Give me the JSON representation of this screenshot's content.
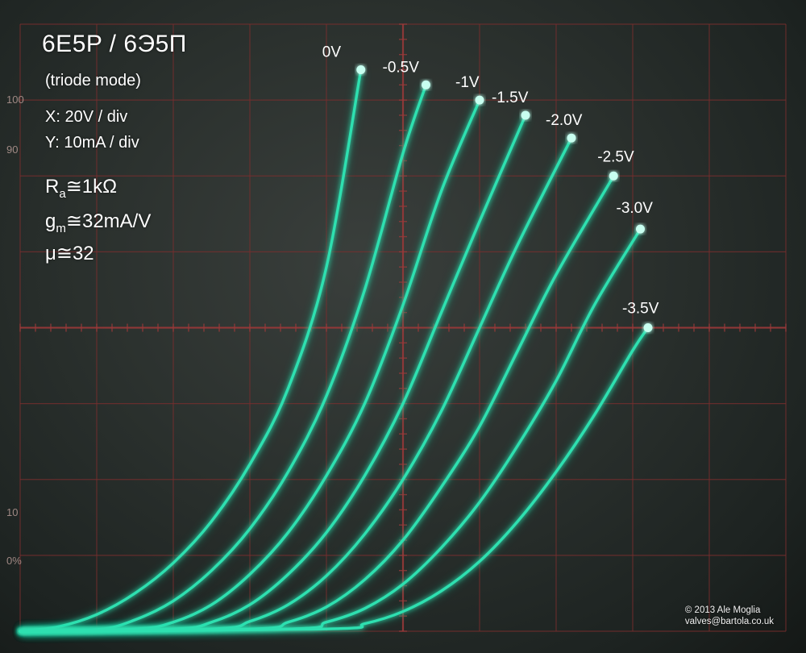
{
  "header": {
    "title": "6E5P / 6Э5П",
    "subtitle": "(triode mode)",
    "x_scale": "X: 20V / div",
    "y_scale": "Y: 10mA / div"
  },
  "params": {
    "ra_symbol": "R",
    "ra_sub": "a",
    "ra_value": "≅1kΩ",
    "gm_symbol": "g",
    "gm_sub": "m",
    "gm_value": "≅32mA/V",
    "mu": "μ≅32"
  },
  "graticule_marks": {
    "left_100": "100",
    "left_90": "90",
    "left_10": "10",
    "left_0pct": "0%"
  },
  "copyright": {
    "line1": "© 2013 Ale Moglia",
    "line2": "valves@bartola.co.uk"
  },
  "colors": {
    "trace": "#2fe0b0",
    "trace_glow": "#18a07e",
    "grid": "#7a2e2e"
  },
  "chart_data": {
    "type": "line",
    "title": "6E5P / 6Э5П",
    "subtitle": "(triode mode)",
    "xlabel": "",
    "ylabel": "",
    "x_units_per_div": "20V",
    "y_units_per_div": "10mA",
    "grid": true,
    "xlim": [
      0,
      200
    ],
    "ylim": [
      0,
      80
    ],
    "series": [
      {
        "name": "0V",
        "x": [
          0,
          10,
          20,
          30,
          40,
          50,
          60,
          70,
          80,
          89
        ],
        "y": [
          0,
          0.6,
          2.2,
          5.0,
          9.0,
          14.5,
          22.0,
          32.0,
          48.0,
          74.0
        ]
      },
      {
        "name": "-0.5V",
        "x": [
          0,
          20,
          30,
          40,
          50,
          60,
          70,
          80,
          90,
          100,
          106
        ],
        "y": [
          0,
          0.2,
          1.5,
          4.0,
          8.0,
          13.5,
          21.0,
          31.0,
          45.0,
          63.0,
          72.0
        ]
      },
      {
        "name": "-1V",
        "x": [
          0,
          30,
          40,
          50,
          60,
          70,
          80,
          90,
          100,
          110,
          120
        ],
        "y": [
          0,
          0.3,
          1.2,
          3.5,
          7.5,
          13.0,
          20.5,
          30.0,
          43.0,
          58.0,
          70.0
        ]
      },
      {
        "name": "-1.5V",
        "x": [
          0,
          40,
          50,
          60,
          70,
          80,
          90,
          100,
          110,
          120,
          132
        ],
        "y": [
          0,
          0.3,
          1.2,
          3.5,
          7.5,
          13.0,
          20.5,
          30.0,
          42.0,
          54.0,
          68.0
        ]
      },
      {
        "name": "-2.0V",
        "x": [
          0,
          50,
          60,
          70,
          80,
          90,
          100,
          110,
          120,
          130,
          144
        ],
        "y": [
          0,
          0.3,
          1.3,
          3.5,
          7.3,
          12.8,
          20.0,
          29.0,
          40.0,
          51.0,
          65.0
        ]
      },
      {
        "name": "-2.5V",
        "x": [
          0,
          60,
          70,
          80,
          90,
          100,
          110,
          120,
          130,
          140,
          155
        ],
        "y": [
          0,
          0.3,
          1.2,
          3.2,
          6.8,
          12.0,
          19.0,
          27.0,
          37.0,
          47.0,
          60.0
        ]
      },
      {
        "name": "-3.0V",
        "x": [
          0,
          70,
          80,
          90,
          100,
          110,
          120,
          130,
          140,
          150,
          162
        ],
        "y": [
          0,
          0.3,
          1.2,
          3.0,
          6.2,
          11.0,
          17.0,
          24.5,
          33.0,
          43.0,
          53.0
        ]
      },
      {
        "name": "-3.5V",
        "x": [
          0,
          80,
          90,
          100,
          110,
          120,
          130,
          140,
          150,
          160,
          164
        ],
        "y": [
          0,
          0.3,
          1.0,
          2.6,
          5.3,
          9.2,
          14.5,
          21.0,
          28.5,
          37.0,
          40.0
        ]
      }
    ]
  }
}
